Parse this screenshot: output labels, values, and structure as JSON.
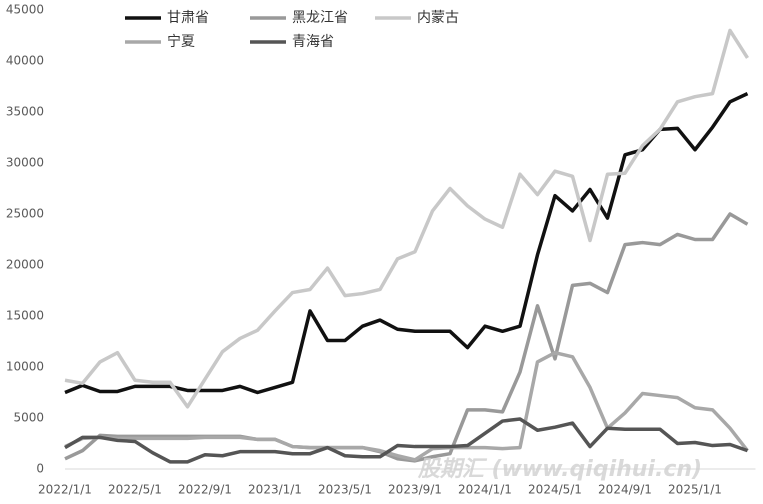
{
  "chart_data": {
    "type": "line",
    "x": [
      "2022/1/1",
      "2022/2/1",
      "2022/3/1",
      "2022/4/1",
      "2022/5/1",
      "2022/6/1",
      "2022/7/1",
      "2022/8/1",
      "2022/9/1",
      "2022/10/1",
      "2022/11/1",
      "2022/12/1",
      "2023/1/1",
      "2023/2/1",
      "2023/3/1",
      "2023/4/1",
      "2023/5/1",
      "2023/6/1",
      "2023/7/1",
      "2023/8/1",
      "2023/9/1",
      "2023/10/1",
      "2023/11/1",
      "2023/12/1",
      "2024/1/1",
      "2024/2/1",
      "2024/3/1",
      "2024/4/1",
      "2024/5/1",
      "2024/6/1",
      "2024/7/1",
      "2024/8/1",
      "2024/9/1",
      "2024/10/1",
      "2024/11/1",
      "2024/12/1",
      "2025/1/1",
      "2025/2/1",
      "2025/3/1",
      "2025/4/1"
    ],
    "xticks": [
      "2022/1/1",
      "2022/5/1",
      "2022/9/1",
      "2023/1/1",
      "2023/5/1",
      "2023/9/1",
      "2024/1/1",
      "2024/5/1",
      "2024/9/1",
      "2025/1/1"
    ],
    "ylim": [
      0,
      45000
    ],
    "yticks": [
      0,
      5000,
      10000,
      15000,
      20000,
      25000,
      30000,
      35000,
      40000,
      45000
    ],
    "grid": false,
    "legend": "top",
    "watermark": "股期汇 (www.qiqihui.cn)",
    "series": [
      {
        "name": "甘肃省",
        "color": "#111111",
        "values": [
          7500,
          8200,
          7600,
          7600,
          8100,
          8100,
          8100,
          7700,
          7700,
          7700,
          8100,
          7500,
          8000,
          8500,
          15500,
          12600,
          12600,
          14000,
          14600,
          13700,
          13500,
          13500,
          13500,
          11900,
          14000,
          13500,
          14000,
          21000,
          26800,
          25300,
          27400,
          24600,
          30800,
          31300,
          33300,
          33400,
          31300,
          33500,
          36000,
          36800
        ]
      },
      {
        "name": "黑龙江省",
        "color": "#999999",
        "values": [
          1000,
          1800,
          3300,
          3200,
          3200,
          3200,
          3200,
          3200,
          3200,
          3200,
          3200,
          2900,
          2900,
          2200,
          2100,
          2100,
          2100,
          2100,
          1700,
          1000,
          800,
          1200,
          1500,
          5800,
          5800,
          5600,
          9500,
          16000,
          10800,
          18000,
          18200,
          17300,
          22000,
          22200,
          22000,
          23000,
          22500,
          22500,
          25000,
          24000
        ]
      },
      {
        "name": "内蒙古",
        "color": "#c8c8c8",
        "values": [
          8700,
          8400,
          10500,
          11400,
          8700,
          8500,
          8500,
          6100,
          8800,
          11500,
          12800,
          13600,
          15500,
          17300,
          17600,
          19700,
          17000,
          17200,
          17600,
          20600,
          21300,
          25300,
          27500,
          25800,
          24500,
          23700,
          28900,
          26900,
          29200,
          28700,
          22400,
          28900,
          29000,
          31700,
          33300,
          36000,
          36500,
          36800,
          43000,
          40300
        ]
      },
      {
        "name": "宁夏",
        "color": "#a8a8a8",
        "values": [
          2200,
          3000,
          3100,
          3000,
          3000,
          3000,
          3000,
          3000,
          3100,
          3100,
          3100,
          2900,
          2900,
          2200,
          2100,
          2100,
          2100,
          2100,
          1800,
          1300,
          900,
          2000,
          2100,
          2100,
          2100,
          2000,
          2100,
          10500,
          11400,
          11000,
          8000,
          4000,
          5500,
          7400,
          7200,
          7000,
          6000,
          5800,
          4000,
          1800
        ]
      },
      {
        "name": "青海省",
        "color": "#555555",
        "values": [
          2100,
          3100,
          3100,
          2800,
          2700,
          1600,
          700,
          700,
          1400,
          1300,
          1700,
          1700,
          1700,
          1500,
          1500,
          2100,
          1300,
          1200,
          1200,
          2300,
          2200,
          2200,
          2200,
          2300,
          3500,
          4700,
          4900,
          3800,
          4100,
          4500,
          2200,
          4000,
          3900,
          3900,
          3900,
          2500,
          2600,
          2300,
          2400,
          1800
        ]
      }
    ]
  }
}
